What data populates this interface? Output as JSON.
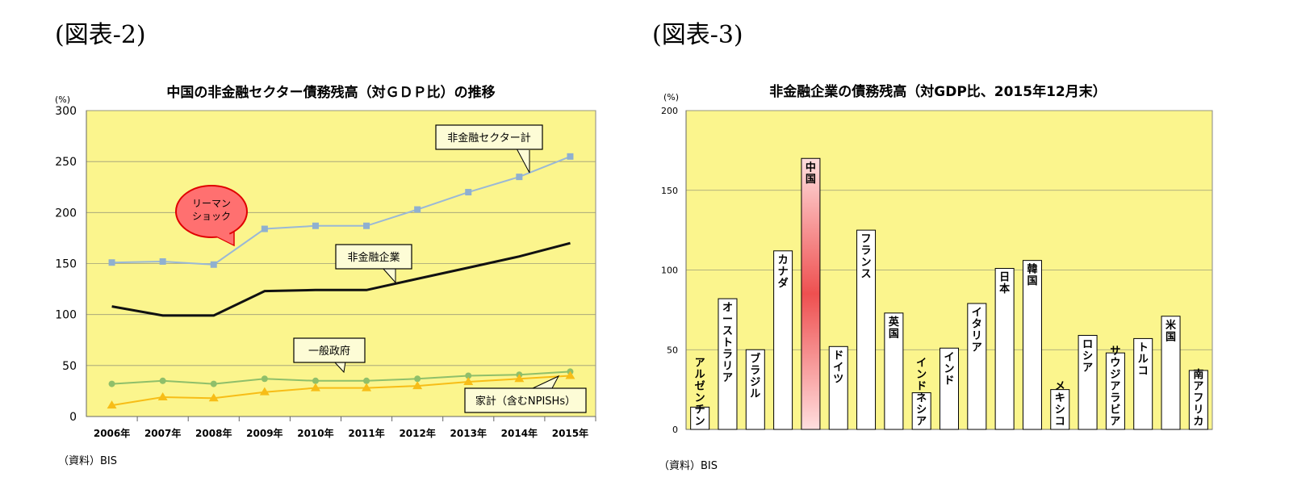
{
  "figures": [
    {
      "caption": "(図表-2)",
      "source": "（資料）BIS"
    },
    {
      "caption": "(図表-3)",
      "source": "（資料）BIS"
    }
  ],
  "colors": {
    "plot_bg": "#fbf58d",
    "grid": "#9c9c7a",
    "nonfin_total": "#9ab8d6",
    "nonfin_corp": "#111111",
    "government": "#8fbf6a",
    "household": "#f7bd17",
    "lehman_fill": "#ff7070",
    "lehman_stroke": "#e00000",
    "china_bar_center": "#ee5050"
  },
  "chart_data": [
    {
      "type": "line",
      "title": "中国の非金融セクター債務残高（対ＧＤＰ比）の推移",
      "ylabel": "(%)",
      "categories": [
        "2006年",
        "2007年",
        "2008年",
        "2009年",
        "2010年",
        "2011年",
        "2012年",
        "2013年",
        "2014年",
        "2015年"
      ],
      "ylim": [
        0,
        300
      ],
      "yticks": [
        0,
        50,
        100,
        150,
        200,
        250,
        300
      ],
      "series": [
        {
          "name": "非金融セクター計",
          "marker": "square",
          "values": [
            151,
            152,
            149,
            184,
            187,
            187,
            203,
            220,
            235,
            255
          ]
        },
        {
          "name": "非金融企業",
          "marker": "none",
          "values": [
            108,
            99,
            99,
            123,
            124,
            124,
            135,
            146,
            157,
            170
          ]
        },
        {
          "name": "一般政府",
          "marker": "circle",
          "values": [
            32,
            35,
            32,
            37,
            35,
            35,
            37,
            40,
            41,
            44
          ]
        },
        {
          "name": "家計（含むNPISHs）",
          "marker": "triangle",
          "values": [
            11,
            19,
            18,
            24,
            28,
            28,
            30,
            34,
            37,
            40
          ]
        }
      ],
      "annotation": "リーマン\nショック",
      "grid": true
    },
    {
      "type": "bar",
      "title": "非金融企業の債務残高（対GDP比、2015年12月末）",
      "ylabel": "(%)",
      "ylim": [
        0,
        200
      ],
      "yticks": [
        0,
        50,
        100,
        150,
        200
      ],
      "categories": [
        "アルゼンチン",
        "オーストラリア",
        "ブラジル",
        "カナダ",
        "中国",
        "ドイツ",
        "フランス",
        "英国",
        "インドネシア",
        "インド",
        "イタリア",
        "日本",
        "韓国",
        "メキシコ",
        "ロシア",
        "サウジアラビア",
        "トルコ",
        "米国",
        "南アフリカ"
      ],
      "values": [
        14,
        82,
        50,
        112,
        170,
        52,
        125,
        73,
        23,
        51,
        79,
        101,
        106,
        25,
        59,
        48,
        57,
        71,
        37
      ],
      "highlight": "中国",
      "grid": true
    }
  ]
}
